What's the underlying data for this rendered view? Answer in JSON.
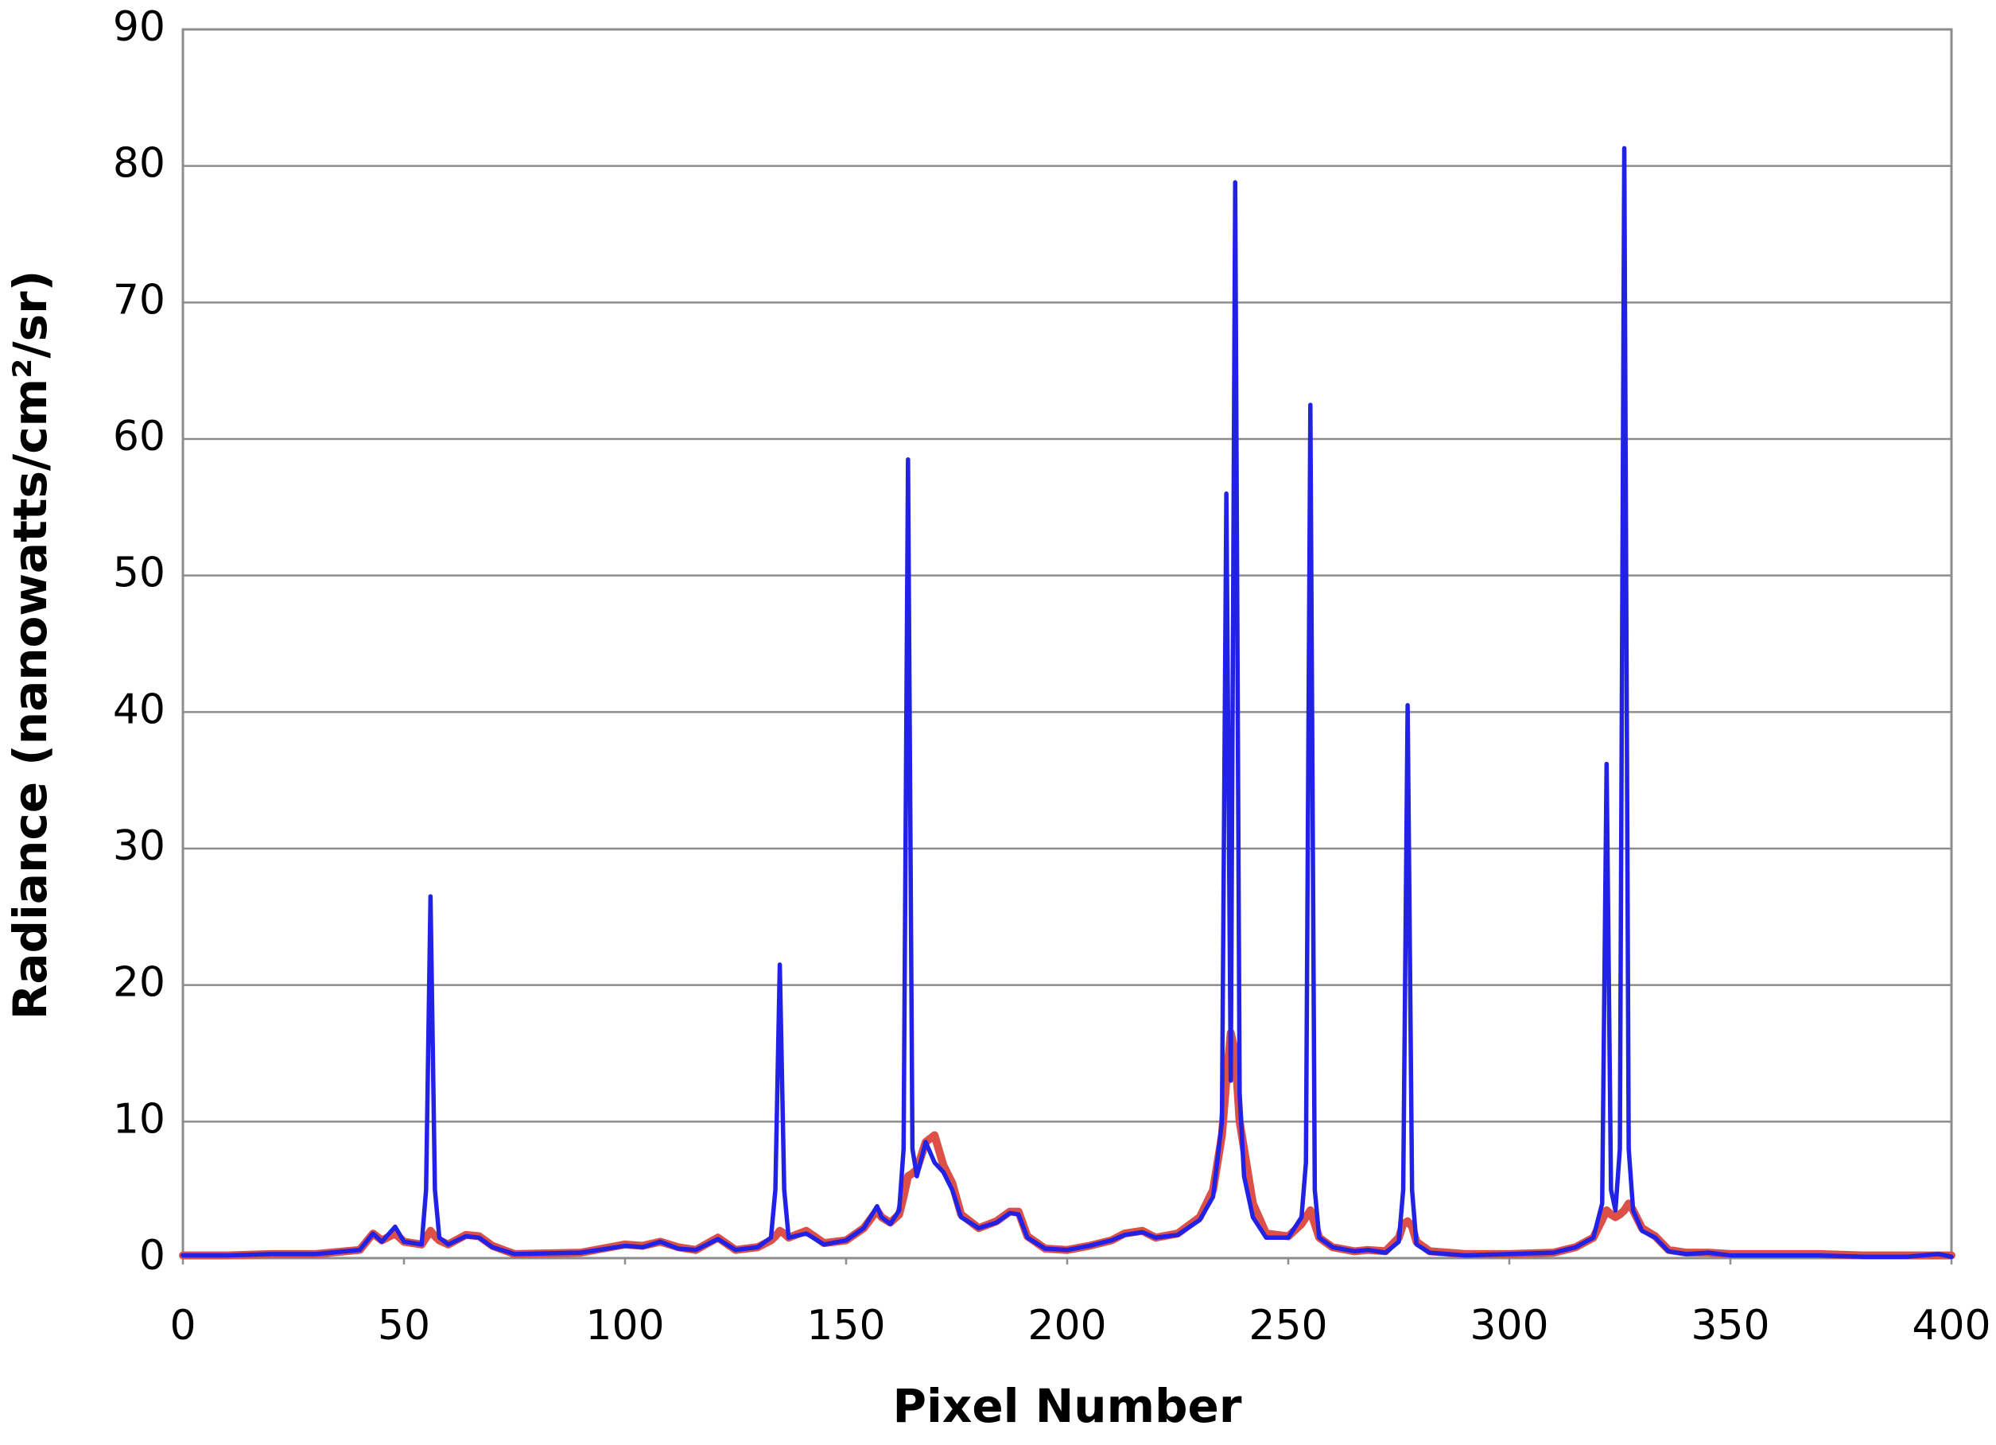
{
  "chart_data": {
    "type": "line",
    "x_label": "Pixel Number",
    "y_label": "Radiance (nanowatts/cm²/sr)",
    "x": [
      0,
      10,
      20,
      30,
      40,
      43,
      45,
      48,
      50,
      54,
      55,
      56,
      57,
      58,
      60,
      64,
      67,
      70,
      75,
      90,
      100,
      104,
      108,
      112,
      116,
      121,
      125,
      130,
      133,
      134,
      135,
      136,
      137,
      141,
      145,
      150,
      154,
      157,
      158,
      160,
      162,
      163,
      164,
      165,
      166,
      168,
      170,
      172,
      174,
      176,
      180,
      184,
      187,
      189,
      191,
      195,
      200,
      205,
      210,
      213,
      217,
      220,
      225,
      230,
      233,
      235,
      236,
      237,
      238,
      239,
      240,
      242,
      245,
      250,
      253,
      254,
      255,
      256,
      257,
      260,
      265,
      268,
      272,
      275,
      276,
      277,
      278,
      279,
      282,
      290,
      300,
      310,
      315,
      319,
      321,
      322,
      323,
      324,
      325,
      326,
      327,
      328,
      330,
      333,
      336,
      340,
      345,
      350,
      360,
      370,
      380,
      390,
      397,
      400
    ],
    "series": [
      {
        "color": "#dc5048",
        "values": [
          0.2,
          0.2,
          0.3,
          0.3,
          0.6,
          1.8,
          1.3,
          1.8,
          1.2,
          1.0,
          1.5,
          2.0,
          1.6,
          1.3,
          1.0,
          1.7,
          1.6,
          0.9,
          0.3,
          0.4,
          1.0,
          0.9,
          1.2,
          0.8,
          0.6,
          1.5,
          0.6,
          0.8,
          1.3,
          1.6,
          2.0,
          1.8,
          1.5,
          2.0,
          1.1,
          1.3,
          2.2,
          3.5,
          3.0,
          2.6,
          3.2,
          4.5,
          6,
          6.2,
          6.5,
          8.5,
          9,
          6.8,
          5.5,
          3.2,
          2.2,
          2.7,
          3.4,
          3.4,
          1.6,
          0.7,
          0.6,
          0.9,
          1.3,
          1.8,
          2.0,
          1.5,
          1.8,
          3.0,
          5,
          9,
          13,
          16.5,
          15,
          10,
          8,
          4,
          1.8,
          1.6,
          2.5,
          3,
          3.5,
          2.5,
          1.5,
          0.8,
          0.5,
          0.6,
          0.5,
          1.5,
          2.5,
          2.7,
          2.3,
          1.2,
          0.5,
          0.3,
          0.3,
          0.4,
          0.8,
          1.5,
          2.8,
          3.5,
          3.2,
          3,
          3.2,
          3.5,
          4,
          3.5,
          2.2,
          1.6,
          0.6,
          0.4,
          0.4,
          0.3,
          0.3,
          0.3,
          0.2,
          0.2,
          0.2,
          0.2
        ]
      },
      {
        "color": "#2222e6",
        "values": [
          0.2,
          0.2,
          0.3,
          0.3,
          0.6,
          1.8,
          1.2,
          2.3,
          1.2,
          1.0,
          5,
          26.5,
          5,
          1.5,
          1.0,
          1.6,
          1.5,
          0.8,
          0.3,
          0.4,
          0.9,
          0.8,
          1.2,
          0.7,
          0.6,
          1.4,
          0.6,
          0.8,
          1.5,
          5,
          21.5,
          5,
          1.5,
          1.8,
          1.0,
          1.3,
          2.2,
          3.8,
          3.0,
          2.5,
          3.5,
          8,
          58.5,
          8,
          6,
          8.5,
          7,
          6.3,
          5,
          3,
          2.2,
          2.6,
          3.3,
          3.2,
          1.5,
          0.7,
          0.6,
          0.9,
          1.3,
          1.7,
          1.9,
          1.5,
          1.7,
          2.8,
          4.5,
          10,
          56,
          13,
          78.8,
          12,
          6,
          3,
          1.5,
          1.5,
          3,
          7,
          62.5,
          5,
          1.5,
          0.8,
          0.5,
          0.6,
          0.4,
          1.2,
          5,
          40.5,
          5,
          1,
          0.4,
          0.2,
          0.3,
          0.4,
          0.8,
          1.5,
          4,
          36.2,
          5,
          3.5,
          8,
          81.3,
          8,
          3.5,
          2,
          1.5,
          0.5,
          0.3,
          0.4,
          0.2,
          0.2,
          0.2,
          0.1,
          0.1,
          0.3,
          0.1
        ]
      }
    ],
    "xlim": [
      0,
      400
    ],
    "xticks": [
      0,
      50,
      100,
      150,
      200,
      250,
      300,
      350,
      400
    ],
    "ylim": [
      0,
      90
    ],
    "yticks": [
      0,
      10,
      20,
      30,
      40,
      50,
      60,
      70,
      80,
      90
    ],
    "grid": true
  }
}
